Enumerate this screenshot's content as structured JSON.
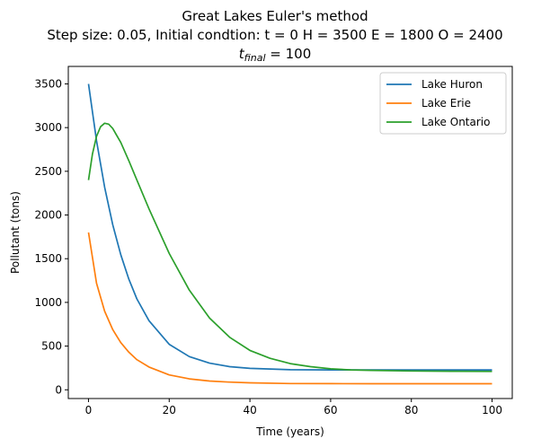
{
  "chart_data": {
    "type": "line",
    "title": {
      "line1": "Great Lakes Euler's method",
      "line2": "Step size: 0.05, Initial condtion: t = 0 H = 3500 E = 1800 O = 2400",
      "line3_var": "t",
      "line3_sub": "final",
      "line3_rest": " = 100"
    },
    "xlabel": "Time (years)",
    "ylabel": "Pollutant (tons)",
    "xlim": [
      -5,
      105
    ],
    "ylim": [
      -100,
      3700
    ],
    "xticks": [
      0,
      20,
      40,
      60,
      80,
      100
    ],
    "yticks": [
      0,
      500,
      1000,
      1500,
      2000,
      2500,
      3000,
      3500
    ],
    "grid": false,
    "legend_position": "top-right",
    "series": [
      {
        "name": "Lake Huron",
        "color": "#1f77b4",
        "x": [
          0,
          2,
          4,
          6,
          8,
          10,
          12,
          15,
          20,
          25,
          30,
          35,
          40,
          50,
          60,
          70,
          80,
          90,
          100
        ],
        "y": [
          3500,
          2850,
          2320,
          1890,
          1545,
          1265,
          1040,
          790,
          520,
          380,
          305,
          265,
          245,
          230,
          228,
          228,
          228,
          228,
          228
        ]
      },
      {
        "name": "Lake Erie",
        "color": "#ff7f0e",
        "x": [
          0,
          2,
          4,
          6,
          8,
          10,
          12,
          15,
          20,
          25,
          30,
          35,
          40,
          50,
          60,
          70,
          80,
          90,
          100
        ],
        "y": [
          1800,
          1220,
          900,
          690,
          540,
          430,
          345,
          260,
          170,
          125,
          100,
          88,
          80,
          72,
          70,
          69,
          69,
          69,
          69
        ]
      },
      {
        "name": "Lake Ontario",
        "color": "#2ca02c",
        "x": [
          0,
          1,
          2,
          3,
          4,
          5,
          6,
          8,
          10,
          12,
          15,
          20,
          25,
          30,
          35,
          40,
          45,
          50,
          55,
          60,
          65,
          70,
          80,
          90,
          100
        ],
        "y": [
          2400,
          2700,
          2900,
          3010,
          3050,
          3040,
          2990,
          2830,
          2620,
          2400,
          2070,
          1560,
          1140,
          820,
          600,
          450,
          360,
          300,
          265,
          240,
          228,
          222,
          215,
          212,
          210
        ]
      }
    ]
  }
}
